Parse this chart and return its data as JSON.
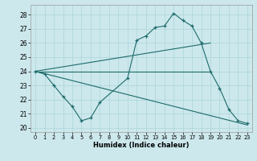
{
  "title": "",
  "xlabel": "Humidex (Indice chaleur)",
  "background_color": "#cce8ec",
  "line_color": "#1e6b6b",
  "grid_color": "#aad4d8",
  "xlim": [
    -0.5,
    23.5
  ],
  "ylim": [
    19.7,
    28.7
  ],
  "yticks": [
    20,
    21,
    22,
    23,
    24,
    25,
    26,
    27,
    28
  ],
  "xticks": [
    0,
    1,
    2,
    3,
    4,
    5,
    6,
    7,
    8,
    9,
    10,
    11,
    12,
    13,
    14,
    15,
    16,
    17,
    18,
    19,
    20,
    21,
    22,
    23
  ],
  "curve1": {
    "x": [
      0,
      1,
      2,
      3,
      4,
      5,
      6,
      7,
      10,
      11,
      12,
      13,
      14,
      15,
      16,
      17,
      18,
      19,
      20,
      21,
      22,
      23
    ],
    "y": [
      24.0,
      23.8,
      23.0,
      22.2,
      21.5,
      20.5,
      20.7,
      21.8,
      23.5,
      26.2,
      26.5,
      27.1,
      27.2,
      28.1,
      27.6,
      27.2,
      26.0,
      24.0,
      22.8,
      21.3,
      20.5,
      20.3
    ]
  },
  "curve2": {
    "x": [
      0,
      1,
      2,
      3,
      4,
      5,
      6,
      7,
      10,
      11,
      12,
      13,
      14,
      15,
      16,
      17,
      18,
      19,
      20,
      21,
      22,
      23
    ],
    "y": [
      24.0,
      23.8,
      23.0,
      22.2,
      21.5,
      20.5,
      20.7,
      21.8,
      23.5,
      26.2,
      26.5,
      27.1,
      27.2,
      28.1,
      27.6,
      27.2,
      26.0,
      24.0,
      22.8,
      21.3,
      20.5,
      20.3
    ]
  },
  "line_upper": {
    "x": [
      0,
      19
    ],
    "y": [
      24.0,
      24.0
    ]
  },
  "line_lower": {
    "x": [
      0,
      23
    ],
    "y": [
      24.0,
      20.2
    ]
  },
  "line_diag_upper": {
    "x": [
      0,
      19
    ],
    "y": [
      24.0,
      26.0
    ]
  }
}
